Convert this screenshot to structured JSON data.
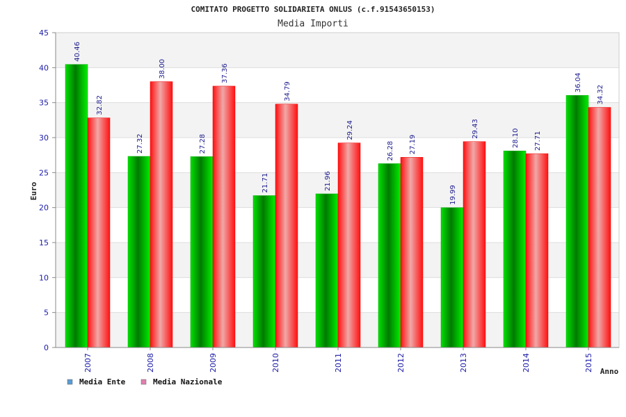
{
  "chart_data": {
    "type": "bar",
    "title": "COMITATO PROGETTO SOLIDARIETA ONLUS (c.f.91543650153)",
    "subtitle": "Media Importi",
    "xlabel": "Anno",
    "ylabel": "Euro",
    "ylim": [
      0,
      45
    ],
    "yticks": [
      0,
      5,
      10,
      15,
      20,
      25,
      30,
      35,
      40,
      45
    ],
    "categories": [
      "2007",
      "2008",
      "2009",
      "2010",
      "2011",
      "2012",
      "2013",
      "2014",
      "2015"
    ],
    "series": [
      {
        "name": "Media Ente",
        "values": [
          40.46,
          27.32,
          27.28,
          21.71,
          21.96,
          26.28,
          19.99,
          28.1,
          36.04
        ],
        "labels": [
          "40.46",
          "27.32",
          "27.28",
          "21.71",
          "21.96",
          "26.28",
          "19.99",
          "28.10",
          "36.04"
        ],
        "color": "#00c000",
        "legend_color": "#5b9bd5"
      },
      {
        "name": "Media Nazionale",
        "values": [
          32.82,
          38.0,
          37.36,
          34.79,
          29.24,
          27.19,
          29.43,
          27.71,
          34.32
        ],
        "labels": [
          "32.82",
          "38.00",
          "37.36",
          "34.79",
          "29.24",
          "27.19",
          "29.43",
          "27.71",
          "34.32"
        ],
        "color": "#ff1a1a",
        "legend_color": "#e07fb0"
      }
    ],
    "grid": true,
    "legend_position": "bottom-left"
  }
}
